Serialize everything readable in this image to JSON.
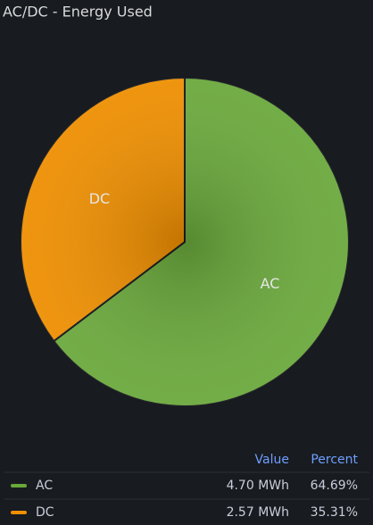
{
  "chart_data": {
    "type": "pie",
    "title": "AC/DC - Energy Used",
    "categories": [
      "AC",
      "DC"
    ],
    "values": [
      4.7,
      2.57
    ],
    "value_labels": [
      "4.70 MWh",
      "2.57 MWh"
    ],
    "percents": [
      64.69,
      35.31
    ],
    "percent_labels": [
      "64.69%",
      "35.31%"
    ],
    "colors": [
      "#6aa83b",
      "#ee8e00"
    ],
    "legend_columns": [
      "Value",
      "Percent"
    ]
  }
}
